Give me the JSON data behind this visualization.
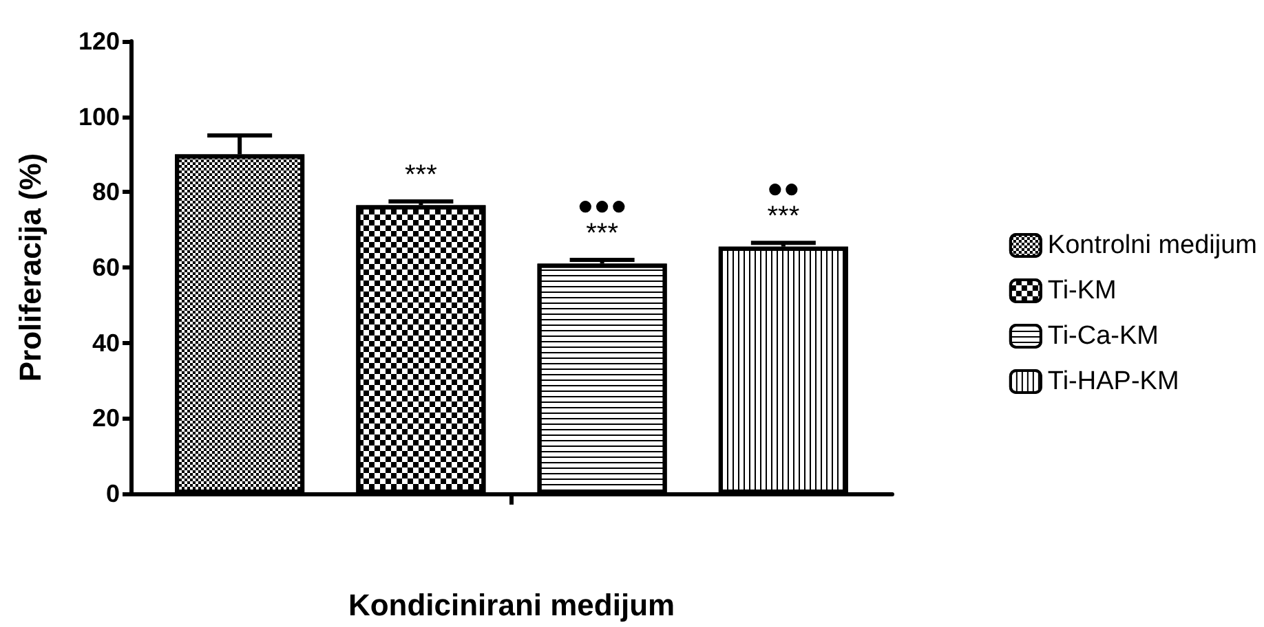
{
  "chart_data": {
    "type": "bar",
    "xlabel": "Kondicinirani medijum",
    "ylabel": "Proliferacija (%)",
    "categories": [
      null
    ],
    "series": [
      {
        "name": "Kontrolni medijum",
        "color": "#000000",
        "values": [
          90
        ],
        "errors": [
          [
            90,
            95
          ]
        ]
      },
      {
        "name": "Ti-KM",
        "color": "#000000",
        "values": [
          76.5
        ],
        "errors": [
          [
            76.5,
            77.5
          ]
        ],
        "value_labels": [
          "***"
        ]
      },
      {
        "name": "Ti-Ca-KM",
        "color": "#000000",
        "values": [
          61
        ],
        "errors": [
          [
            61,
            62
          ]
        ],
        "value_labels": [
          "●●●\n***"
        ]
      },
      {
        "name": "Ti-HAP-KM",
        "color": "#000000",
        "values": [
          65.5
        ],
        "errors": [
          [
            65.5,
            66.5
          ]
        ],
        "value_labels": [
          "●●\n***"
        ]
      }
    ],
    "ylim": [
      0,
      120
    ],
    "yticks": [
      0,
      20,
      40,
      60,
      80,
      100,
      120
    ],
    "grid": false,
    "legend": "right"
  }
}
